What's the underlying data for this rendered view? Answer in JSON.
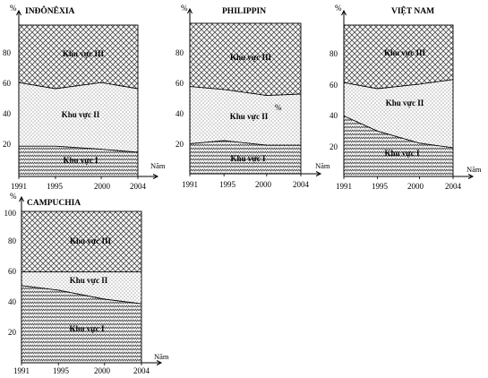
{
  "chart_data": [
    {
      "type": "area",
      "title": "INĐÔNÊXIA",
      "ylabel": "%",
      "xlabel": "Năm",
      "x": [
        1991,
        1995,
        2000,
        2004
      ],
      "x_ticks": [
        "1991",
        "1995",
        "2000",
        "2004"
      ],
      "y_ticks": [
        "20",
        "40",
        "60",
        "80"
      ],
      "ylim": [
        0,
        100
      ],
      "stacked": true,
      "series": [
        {
          "name": "Khu vực I",
          "values": [
            20,
            20,
            18,
            16
          ]
        },
        {
          "name": "Khu vực II",
          "values": [
            42,
            38,
            44,
            42
          ]
        },
        {
          "name": "Khu vực III",
          "values": [
            38,
            42,
            38,
            42
          ]
        }
      ]
    },
    {
      "type": "area",
      "title": "PHILIPPIN",
      "ylabel": "%",
      "xlabel": "Năm",
      "x": [
        1991,
        1995,
        2000,
        2004
      ],
      "x_ticks": [
        "1991",
        "1995",
        "2000",
        "2004"
      ],
      "y_ticks": [
        "20",
        "40",
        "60",
        "80"
      ],
      "ylim": [
        0,
        100
      ],
      "stacked": true,
      "series": [
        {
          "name": "Khu vực I",
          "values": [
            20,
            22,
            19,
            19
          ]
        },
        {
          "name": "Khu vực II",
          "values": [
            38,
            34,
            33,
            34
          ]
        },
        {
          "name": "Khu vực III",
          "values": [
            42,
            44,
            48,
            47
          ]
        }
      ],
      "annotation": "%"
    },
    {
      "type": "area",
      "title": "VIỆT NAM",
      "ylabel": "%",
      "xlabel": "Năm",
      "x": [
        1991,
        1995,
        2000,
        2004
      ],
      "x_ticks": [
        "1991",
        "1995",
        "2000",
        "2004"
      ],
      "y_ticks": [
        "20",
        "40",
        "60",
        "80"
      ],
      "ylim": [
        0,
        100
      ],
      "stacked": true,
      "series": [
        {
          "name": "Khu vực I",
          "values": [
            40,
            30,
            22,
            19
          ]
        },
        {
          "name": "Khu vực II",
          "values": [
            22,
            28,
            39,
            45
          ]
        },
        {
          "name": "Khu vực III",
          "values": [
            38,
            42,
            39,
            36
          ]
        }
      ]
    },
    {
      "type": "area",
      "title": "CAMPUCHIA",
      "ylabel": "%",
      "xlabel": "Năm",
      "x": [
        1991,
        1995,
        2000,
        2004
      ],
      "x_ticks": [
        "1991",
        "1995",
        "2000",
        "2004"
      ],
      "y_ticks": [
        "20",
        "40",
        "60",
        "80",
        "100"
      ],
      "ylim": [
        0,
        100
      ],
      "stacked": true,
      "series": [
        {
          "name": "Khu vực I",
          "values": [
            51,
            48,
            42,
            39
          ]
        },
        {
          "name": "Khu vực II",
          "values": [
            9,
            12,
            18,
            21
          ]
        },
        {
          "name": "Khu vực III",
          "values": [
            40,
            40,
            40,
            40
          ]
        }
      ]
    }
  ]
}
